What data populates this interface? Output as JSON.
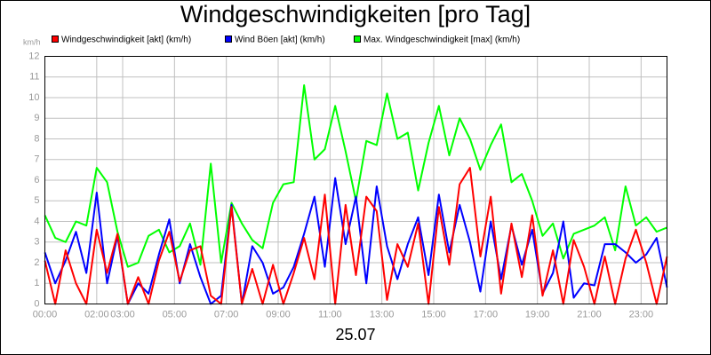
{
  "chart_data": {
    "type": "line",
    "title": "Windgeschwindigkeiten [pro Tag]",
    "y_label": "km/h",
    "x_label": "25.07",
    "x": [
      0,
      0.4,
      0.8,
      1.2,
      1.6,
      2,
      2.4,
      2.8,
      3.2,
      3.6,
      4,
      4.4,
      4.8,
      5.2,
      5.6,
      6,
      6.4,
      6.8,
      7.2,
      7.6,
      8,
      8.4,
      8.8,
      9.2,
      9.6,
      10,
      10.4,
      10.8,
      11.2,
      11.6,
      12,
      12.4,
      12.8,
      13.2,
      13.6,
      14,
      14.4,
      14.8,
      15.2,
      15.6,
      16,
      16.4,
      16.8,
      17.2,
      17.6,
      18,
      18.4,
      18.8,
      19.2,
      19.6,
      20,
      20.4,
      20.8,
      21.2,
      21.6,
      22,
      22.4,
      22.8,
      23.2,
      23.6,
      24
    ],
    "series": [
      {
        "name": "Windgeschwindigkeit [akt] (km/h)",
        "color": "#ff0000",
        "values": [
          2.1,
          0.0,
          2.6,
          1.0,
          0.0,
          3.6,
          1.5,
          3.4,
          0.0,
          1.3,
          0.0,
          2.1,
          3.5,
          1.1,
          2.6,
          2.8,
          0.4,
          0.0,
          4.7,
          0.0,
          1.7,
          0.0,
          1.9,
          0.0,
          1.5,
          3.2,
          1.2,
          5.3,
          0.0,
          4.8,
          1.4,
          5.2,
          4.5,
          0.2,
          2.9,
          1.8,
          3.9,
          0.0,
          4.7,
          1.9,
          5.8,
          6.6,
          2.3,
          5.2,
          0.5,
          3.9,
          1.3,
          4.3,
          0.4,
          2.6,
          0.0,
          3.1,
          1.8,
          0.0,
          2.3,
          0.0,
          2.2,
          3.6,
          2.0,
          0.0,
          2.3
        ]
      },
      {
        "name": "Wind Böen [akt] (km/h)",
        "color": "#0000ff",
        "values": [
          2.5,
          1.0,
          2.1,
          3.5,
          1.5,
          5.4,
          1.0,
          3.3,
          0.0,
          1.0,
          0.5,
          2.4,
          4.1,
          1.0,
          2.9,
          1.3,
          0.0,
          0.4,
          4.8,
          0.0,
          2.8,
          2.0,
          0.5,
          0.8,
          1.8,
          3.4,
          5.2,
          1.8,
          6.1,
          2.9,
          5.2,
          1.0,
          5.7,
          2.8,
          1.2,
          2.9,
          4.2,
          1.4,
          5.3,
          2.5,
          4.8,
          3.0,
          0.6,
          4.0,
          1.2,
          3.8,
          1.9,
          3.6,
          0.5,
          1.5,
          4.0,
          0.3,
          1.0,
          0.9,
          2.9,
          2.9,
          2.5,
          2.0,
          2.4,
          3.2,
          0.8
        ]
      },
      {
        "name": "Max. Windgeschwindigkeit [max] (km/h)",
        "color": "#00ff00",
        "values": [
          4.3,
          3.2,
          3.0,
          4.0,
          3.8,
          6.6,
          5.9,
          3.5,
          1.8,
          2.0,
          3.3,
          3.6,
          2.5,
          2.8,
          3.9,
          1.9,
          6.8,
          2.0,
          4.9,
          3.9,
          3.1,
          2.7,
          4.9,
          5.8,
          5.9,
          10.6,
          7.0,
          7.5,
          9.6,
          7.4,
          5.0,
          7.9,
          7.7,
          10.2,
          8.0,
          8.3,
          5.5,
          7.8,
          9.6,
          7.2,
          9.0,
          8.0,
          6.5,
          7.7,
          8.7,
          5.9,
          6.3,
          5.0,
          3.3,
          3.9,
          2.2,
          3.4,
          3.6,
          3.8,
          4.2,
          2.6,
          5.7,
          3.8,
          4.2,
          3.5,
          3.7
        ]
      }
    ],
    "xlim": [
      0,
      24
    ],
    "xticks": [
      {
        "value": 0,
        "label": "00:00"
      },
      {
        "value": 2,
        "label": "02:00"
      },
      {
        "value": 3,
        "label": "03:00"
      },
      {
        "value": 5,
        "label": "05:00"
      },
      {
        "value": 7,
        "label": "07:00"
      },
      {
        "value": 9,
        "label": "09:00"
      },
      {
        "value": 11,
        "label": "11:00"
      },
      {
        "value": 13,
        "label": "13:00"
      },
      {
        "value": 15,
        "label": "15:00"
      },
      {
        "value": 17,
        "label": "17:00"
      },
      {
        "value": 19,
        "label": "19:00"
      },
      {
        "value": 21,
        "label": "21:00"
      },
      {
        "value": 23,
        "label": "23:00"
      }
    ],
    "ylim": [
      0,
      12
    ],
    "yticks": [
      0,
      1,
      2,
      3,
      4,
      5,
      6,
      7,
      8,
      9,
      10,
      11,
      12
    ],
    "grid": true
  }
}
